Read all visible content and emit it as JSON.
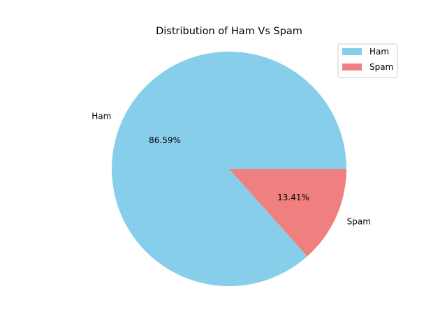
{
  "chart_data": {
    "type": "pie",
    "title": "Distribution of Ham Vs Spam",
    "slices": [
      {
        "label": "Ham",
        "value": 86.59,
        "pct_label": "86.59%",
        "color": "#87CEEB"
      },
      {
        "label": "Spam",
        "value": 13.41,
        "pct_label": "13.41%",
        "color": "#F08080"
      }
    ],
    "start_angle_deg": 0,
    "direction": "counterclockwise",
    "legend": {
      "placement": "top-right",
      "entries": [
        "Ham",
        "Spam"
      ]
    }
  }
}
